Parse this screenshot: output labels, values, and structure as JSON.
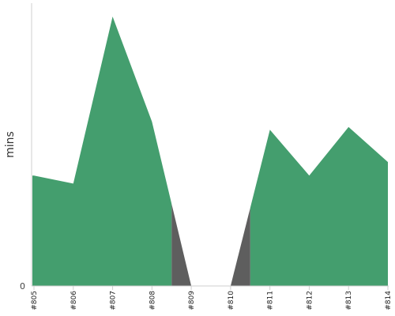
{
  "chart_data": {
    "type": "area",
    "categories": [
      "#805",
      "#806",
      "#807",
      "#808",
      "#809",
      "#810",
      "#811",
      "#812",
      "#813",
      "#814"
    ],
    "ylabel": "mins",
    "y_ticks": [
      "0"
    ],
    "ylim": [
      0,
      100
    ],
    "grid": false,
    "legend": "none",
    "colors": {
      "series": "#449e6e",
      "transition": "#5e5e5e"
    },
    "series": [
      {
        "values": [
          41,
          38,
          100,
          61,
          0,
          0,
          58,
          41,
          59,
          46
        ]
      }
    ]
  }
}
